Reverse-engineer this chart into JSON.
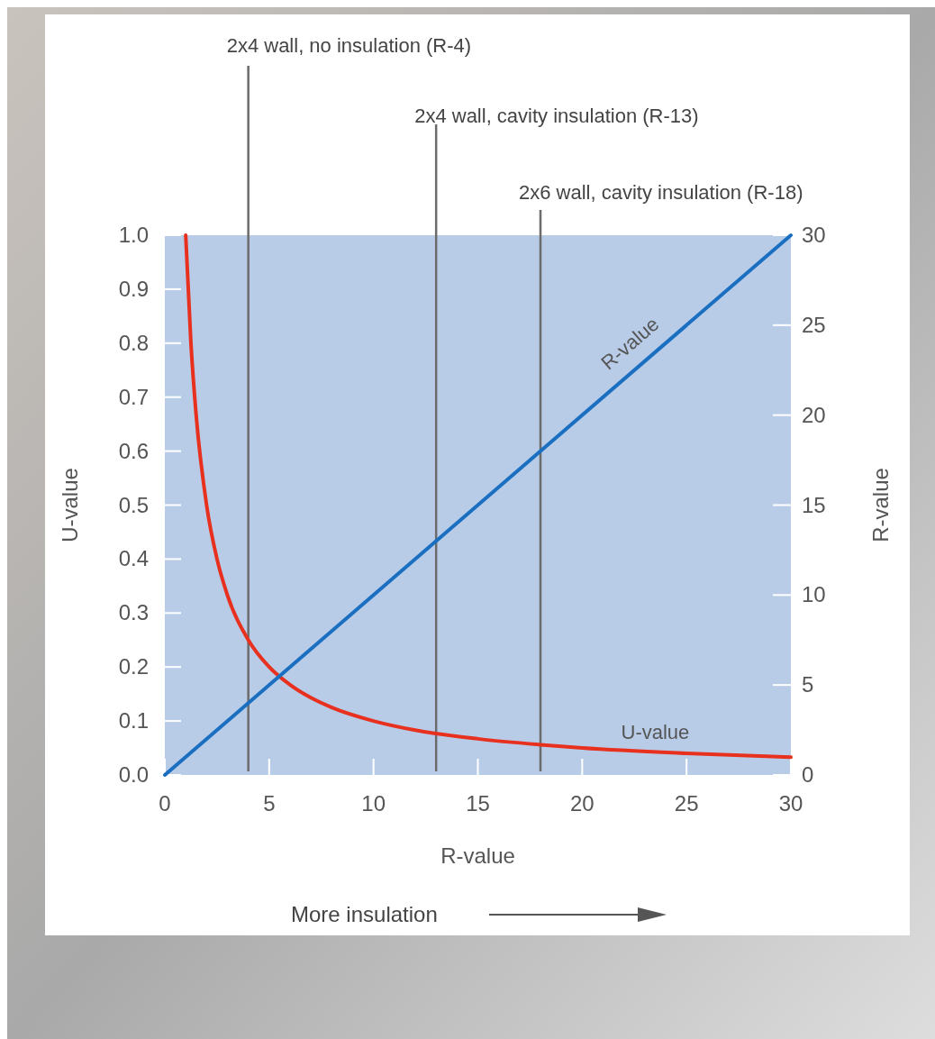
{
  "chart_data": {
    "type": "line",
    "xlabel": "R-value",
    "ylabel": "U-value",
    "y2label": "R-value",
    "xlim": [
      0,
      30
    ],
    "xticks": [
      0,
      5,
      10,
      15,
      20,
      25,
      30
    ],
    "ylim": [
      0,
      1
    ],
    "yticks": [
      {
        "value": 0,
        "label": "0.0"
      },
      0.1,
      0.2,
      0.3,
      0.4,
      0.5,
      0.6,
      0.7,
      0.8,
      0.9,
      {
        "value": 1,
        "label": "1.0"
      }
    ],
    "y2lim": [
      0,
      30
    ],
    "y2ticks": [
      0,
      5,
      10,
      15,
      20,
      25,
      30
    ],
    "series": [
      {
        "name": "U-value",
        "color": "#e8301e",
        "x": [
          1,
          1.25,
          1.5,
          2,
          2.5,
          3,
          4,
          5,
          6,
          7,
          8,
          10,
          12,
          15,
          18,
          20,
          25,
          30
        ],
        "values": [
          1,
          0.8,
          0.667,
          0.5,
          0.4,
          0.333,
          0.25,
          0.2,
          0.167,
          0.143,
          0.125,
          0.1,
          0.083,
          0.067,
          0.056,
          0.05,
          0.04,
          0.033
        ]
      },
      {
        "name": "R-value",
        "color": "#1a6fc0",
        "axis": "y2",
        "x": [
          0,
          30
        ],
        "values": [
          0,
          30
        ]
      }
    ],
    "ref_lines": [
      {
        "axis": "x",
        "value": 4,
        "label": "2x4 wall, no insulation (R-4)",
        "color": "#6b6b6b"
      },
      {
        "axis": "x",
        "value": 13,
        "label": "2x4 wall, cavity insulation (R-13)",
        "color": "#6b6b6b"
      },
      {
        "axis": "x",
        "value": 18,
        "label": "2x6 wall, cavity insulation (R-18)",
        "color": "#6b6b6b"
      }
    ],
    "annotations": [
      "More insulation"
    ]
  }
}
